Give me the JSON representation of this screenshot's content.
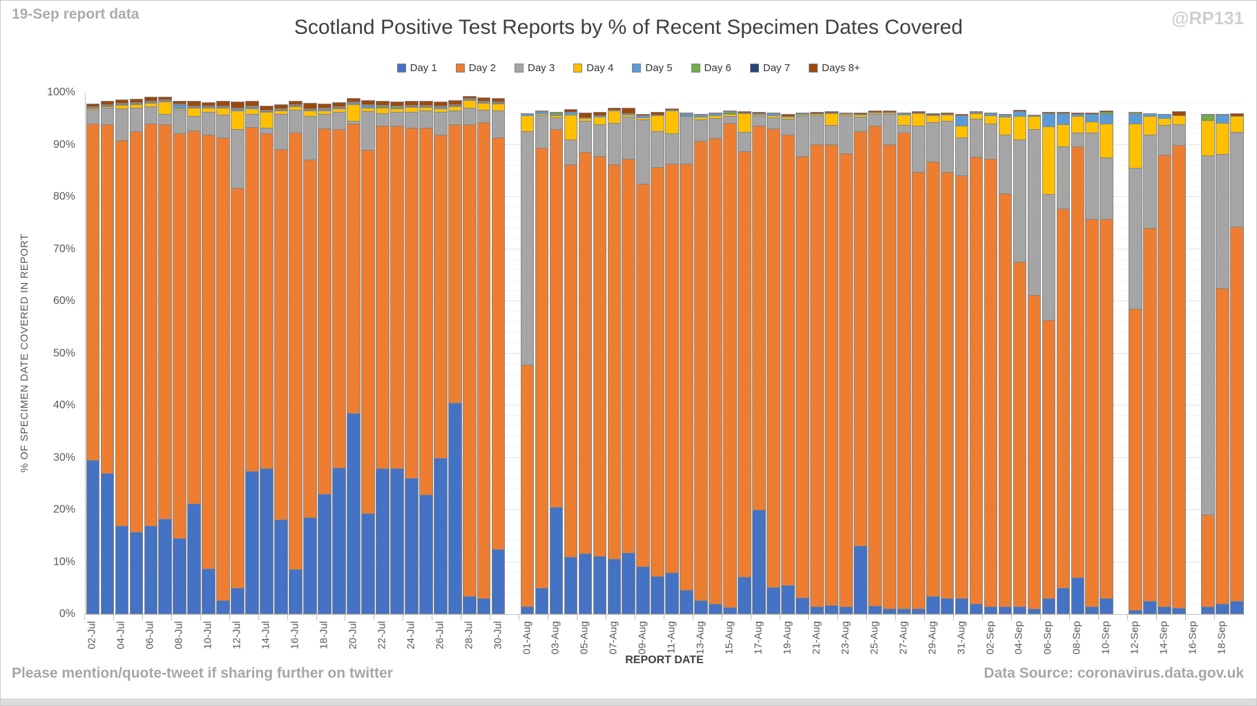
{
  "header": {
    "note_top_left": "19-Sep report data",
    "title": "Scotland Positive Test Reports by % of Recent Specimen Dates Covered",
    "watermark": "@RP131"
  },
  "footer": {
    "left": "Please mention/quote-tweet if sharing further on twitter",
    "right": "Data Source: coronavirus.data.gov.uk"
  },
  "chart_data": {
    "type": "bar",
    "subtype": "stacked-100-percent",
    "title": "Scotland Positive Test Reports by % of Recent Specimen Dates Covered",
    "xlabel": "REPORT DATE",
    "ylabel": "% OF SPECIMEN DATE COVERED IN REPORT",
    "ylim": [
      0,
      100
    ],
    "ytick_labels": [
      "0%",
      "10%",
      "20%",
      "30%",
      "40%",
      "50%",
      "60%",
      "70%",
      "80%",
      "90%",
      "100%"
    ],
    "grid": "horizontal-major-and-minor",
    "legend_position": "top",
    "series": [
      {
        "name": "Day 1",
        "color": "#4472C4"
      },
      {
        "name": "Day 2",
        "color": "#ED7D31"
      },
      {
        "name": "Day 3",
        "color": "#A5A5A5"
      },
      {
        "name": "Day 4",
        "color": "#FFC000"
      },
      {
        "name": "Day 5",
        "color": "#5B9BD5"
      },
      {
        "name": "Day 6",
        "color": "#70AD47"
      },
      {
        "name": "Day 7",
        "color": "#264478"
      },
      {
        "name": "Days 8+",
        "color": "#9E480E"
      }
    ],
    "missing_categories": [
      "31-Jul",
      "11-Sep",
      "16-Sep"
    ],
    "categories": [
      "02-Jul",
      "03-Jul",
      "04-Jul",
      "05-Jul",
      "06-Jul",
      "07-Jul",
      "08-Jul",
      "09-Jul",
      "10-Jul",
      "11-Jul",
      "12-Jul",
      "13-Jul",
      "14-Jul",
      "15-Jul",
      "16-Jul",
      "17-Jul",
      "18-Jul",
      "19-Jul",
      "20-Jul",
      "21-Jul",
      "22-Jul",
      "23-Jul",
      "24-Jul",
      "25-Jul",
      "26-Jul",
      "27-Jul",
      "28-Jul",
      "29-Jul",
      "30-Jul",
      "31-Jul",
      "01-Aug",
      "02-Aug",
      "03-Aug",
      "04-Aug",
      "05-Aug",
      "06-Aug",
      "07-Aug",
      "08-Aug",
      "09-Aug",
      "10-Aug",
      "11-Aug",
      "12-Aug",
      "13-Aug",
      "14-Aug",
      "15-Aug",
      "16-Aug",
      "17-Aug",
      "18-Aug",
      "19-Aug",
      "20-Aug",
      "21-Aug",
      "22-Aug",
      "23-Aug",
      "24-Aug",
      "25-Aug",
      "26-Aug",
      "27-Aug",
      "28-Aug",
      "29-Aug",
      "30-Aug",
      "31-Aug",
      "01-Sep",
      "02-Sep",
      "03-Sep",
      "04-Sep",
      "05-Sep",
      "06-Sep",
      "07-Sep",
      "08-Sep",
      "09-Sep",
      "10-Sep",
      "11-Sep",
      "12-Sep",
      "13-Sep",
      "14-Sep",
      "15-Sep",
      "16-Sep",
      "17-Sep",
      "18-Sep",
      "19-Sep"
    ],
    "values": {
      "02-Jul": [
        29.5,
        64.7,
        2.8,
        0.3,
        0.3,
        0.2,
        0.2,
        0.7
      ],
      "03-Jul": [
        27.0,
        67.0,
        3.3,
        0.4,
        0.2,
        0.2,
        0.2,
        0.8
      ],
      "04-Jul": [
        17.0,
        74.0,
        6.2,
        0.8,
        0.2,
        0.2,
        0.2,
        0.8
      ],
      "05-Jul": [
        15.7,
        77.0,
        4.7,
        0.7,
        0.2,
        0.2,
        0.2,
        0.9
      ],
      "06-Jul": [
        17.0,
        77.2,
        3.4,
        0.8,
        0.2,
        0.2,
        0.2,
        0.9
      ],
      "07-Jul": [
        18.3,
        75.7,
        2.2,
        2.5,
        0.2,
        0.2,
        0.1,
        0.6
      ],
      "08-Jul": [
        14.6,
        77.7,
        4.6,
        0.5,
        0.7,
        0.2,
        0.1,
        0.7
      ],
      "09-Jul": [
        21.2,
        71.6,
        2.9,
        1.8,
        0.3,
        0.2,
        0.2,
        1.0
      ],
      "10-Jul": [
        8.8,
        83.2,
        4.5,
        1.0,
        0.3,
        0.2,
        0.2,
        0.8
      ],
      "11-Jul": [
        2.6,
        88.9,
        4.5,
        1.5,
        0.3,
        0.2,
        0.2,
        1.0
      ],
      "12-Jul": [
        5.0,
        76.8,
        11.5,
        3.6,
        0.4,
        0.3,
        0.2,
        1.4
      ],
      "13-Jul": [
        27.4,
        66.1,
        2.6,
        1.2,
        0.5,
        0.2,
        0.2,
        1.0
      ],
      "14-Jul": [
        27.9,
        64.4,
        1.2,
        3.2,
        0.3,
        0.2,
        0.2,
        0.9
      ],
      "15-Jul": [
        18.1,
        71.2,
        6.8,
        0.8,
        0.3,
        0.2,
        0.2,
        1.0
      ],
      "16-Jul": [
        8.6,
        83.9,
        4.4,
        0.9,
        0.2,
        0.2,
        0.2,
        0.8
      ],
      "17-Jul": [
        18.5,
        68.8,
        8.4,
        1.2,
        0.3,
        0.2,
        0.2,
        1.2
      ],
      "18-Jul": [
        23.1,
        70.2,
        2.8,
        0.9,
        0.3,
        0.2,
        0.2,
        1.0
      ],
      "19-Jul": [
        28.1,
        65.0,
        3.4,
        0.8,
        0.3,
        0.2,
        0.2,
        0.9
      ],
      "20-Jul": [
        38.5,
        55.7,
        0.6,
        3.4,
        0.3,
        0.2,
        0.2,
        0.9
      ],
      "21-Jul": [
        19.4,
        69.7,
        7.6,
        0.8,
        0.5,
        0.2,
        0.2,
        0.9
      ],
      "22-Jul": [
        27.9,
        65.9,
        2.5,
        1.2,
        0.3,
        0.4,
        0.2,
        0.9
      ],
      "23-Jul": [
        27.9,
        65.9,
        2.7,
        0.8,
        0.3,
        0.4,
        0.2,
        0.9
      ],
      "24-Jul": [
        26.1,
        67.3,
        3.1,
        1.1,
        0.3,
        0.2,
        0.2,
        0.9
      ],
      "25-Jul": [
        22.9,
        70.5,
        3.4,
        0.8,
        0.3,
        0.2,
        0.2,
        0.9
      ],
      "26-Jul": [
        30.0,
        62.1,
        4.4,
        0.9,
        0.3,
        0.2,
        0.2,
        1.0
      ],
      "27-Jul": [
        40.5,
        53.5,
        2.8,
        0.9,
        0.3,
        0.2,
        0.2,
        0.9
      ],
      "28-Jul": [
        3.5,
        90.5,
        3.3,
        1.6,
        0.2,
        0.2,
        0.1,
        0.6
      ],
      "29-Jul": [
        3.0,
        91.4,
        2.6,
        1.4,
        0.3,
        0.2,
        0.2,
        0.8
      ],
      "30-Jul": [
        12.5,
        79.0,
        5.3,
        1.5,
        0.3,
        0.2,
        0.2,
        0.8
      ],
      "31-Jul": null,
      "01-Aug": [
        1.4,
        46.6,
        44.9,
        3.1,
        0.6,
        0,
        0,
        0
      ],
      "02-Aug": [
        5.0,
        84.6,
        6.4,
        0.4,
        0.5,
        0,
        0,
        0.3
      ],
      "03-Aug": [
        20.5,
        72.6,
        2.4,
        0.5,
        0.3,
        0.5,
        0,
        0.2
      ],
      "04-Aug": [
        11.0,
        75.4,
        4.8,
        4.9,
        0.7,
        0,
        0,
        0.7
      ],
      "05-Aug": [
        11.7,
        77.0,
        6.2,
        0.6,
        0.3,
        0,
        0,
        1.0
      ],
      "06-Aug": [
        11.1,
        76.8,
        6.3,
        1.6,
        0.3,
        0,
        0,
        0.8
      ],
      "07-Aug": [
        10.6,
        75.7,
        8.1,
        2.5,
        0.3,
        0,
        0,
        0.6
      ],
      "08-Aug": [
        11.8,
        75.6,
        8.3,
        0.5,
        0.4,
        0,
        0,
        1.1
      ],
      "09-Aug": [
        9.2,
        73.5,
        12.4,
        0.6,
        0.5,
        0,
        0,
        0.4
      ],
      "10-Aug": [
        7.3,
        78.5,
        7.1,
        3.1,
        0.3,
        0,
        0,
        0.6
      ],
      "11-Aug": [
        7.9,
        78.6,
        5.9,
        4.5,
        0.3,
        0,
        0,
        0.4
      ],
      "12-Aug": [
        4.6,
        81.9,
        9.2,
        0.3,
        0.5,
        0,
        0,
        0.3
      ],
      "13-Aug": [
        2.6,
        88.3,
        4.2,
        0.7,
        0.5,
        0,
        0,
        0.3
      ],
      "14-Aug": [
        2.0,
        89.4,
        4.0,
        0.6,
        0.5,
        0,
        0,
        0.3
      ],
      "15-Aug": [
        1.3,
        93.0,
        1.5,
        0.5,
        0.2,
        0.5,
        0,
        0.2
      ],
      "16-Aug": [
        7.1,
        81.8,
        3.8,
        3.7,
        0.2,
        0,
        0,
        0.4
      ],
      "17-Aug": [
        20.0,
        73.8,
        2.0,
        0.4,
        0.4,
        0,
        0,
        0.3
      ],
      "18-Aug": [
        5.2,
        88.1,
        2.2,
        0.5,
        0.5,
        0,
        0,
        0.3
      ],
      "19-Aug": [
        5.5,
        86.5,
        3.2,
        0.6,
        0.2,
        0,
        0,
        0.5
      ],
      "20-Aug": [
        3.2,
        84.8,
        7.7,
        0.4,
        0.4,
        0,
        0,
        0.3
      ],
      "21-Aug": [
        1.5,
        88.7,
        5.7,
        0.4,
        0.2,
        0,
        0,
        0.4
      ],
      "22-Aug": [
        1.7,
        88.5,
        3.8,
        2.4,
        0.2,
        0,
        0,
        0.4
      ],
      "23-Aug": [
        1.5,
        87.0,
        7.4,
        0.4,
        0.2,
        0,
        0,
        0.3
      ],
      "24-Aug": [
        13.1,
        79.6,
        3.0,
        0.4,
        0.2,
        0,
        0,
        0.4
      ],
      "25-Aug": [
        1.6,
        92.2,
        2.4,
        0.4,
        0.2,
        0,
        0,
        0.4
      ],
      "26-Aug": [
        1.0,
        89.2,
        6.0,
        0.4,
        0.2,
        0,
        0,
        0.4
      ],
      "27-Aug": [
        1.0,
        91.4,
        1.6,
        2.1,
        0.4,
        0,
        0,
        0.3
      ],
      "28-Aug": [
        1.0,
        83.9,
        9.0,
        2.5,
        0.2,
        0,
        0,
        0.4
      ],
      "29-Aug": [
        3.5,
        83.4,
        7.7,
        1.4,
        0.2,
        0,
        0,
        0.4
      ],
      "30-Aug": [
        3.0,
        81.9,
        10.0,
        1.2,
        0.2,
        0,
        0,
        0.4
      ],
      "31-Aug": [
        3.0,
        81.3,
        7.3,
        2.4,
        2.2,
        0,
        0,
        0.4
      ],
      "01-Sep": [
        2.0,
        85.8,
        7.5,
        1.1,
        0.3,
        0.2,
        0,
        0.3
      ],
      "02-Sep": [
        1.5,
        85.9,
        6.9,
        1.7,
        0.5,
        0,
        0,
        0.3
      ],
      "03-Sep": [
        1.5,
        79.3,
        11.4,
        3.6,
        0.5,
        0,
        0,
        0.3
      ],
      "04-Sep": [
        1.5,
        66.2,
        23.6,
        4.6,
        1.1,
        0,
        0,
        0.3
      ],
      "05-Sep": [
        1.0,
        60.3,
        31.9,
        2.7,
        0.2,
        0,
        0,
        0.3
      ],
      "06-Sep": [
        3.0,
        53.5,
        24.3,
        13.1,
        2.7,
        0,
        0,
        0.4
      ],
      "07-Sep": [
        5.0,
        72.9,
        12.1,
        4.3,
        2.3,
        0,
        0,
        0.4
      ],
      "08-Sep": [
        7.0,
        82.8,
        2.8,
        3.3,
        0.5,
        0,
        0,
        0.4
      ],
      "09-Sep": [
        1.5,
        74.4,
        16.7,
        2.2,
        1.6,
        0,
        0,
        0.4
      ],
      "10-Sep": [
        3.0,
        72.9,
        11.9,
        6.6,
        2.0,
        0.6,
        0,
        0.3
      ],
      "11-Sep": null,
      "12-Sep": [
        0.8,
        57.9,
        27.1,
        8.6,
        2.0,
        0.4,
        0,
        0.2
      ],
      "13-Sep": [
        2.5,
        71.7,
        18.0,
        3.7,
        0.6,
        0,
        0,
        0
      ],
      "14-Sep": [
        1.5,
        86.7,
        5.8,
        1.5,
        0.9,
        0,
        0,
        0
      ],
      "15-Sep": [
        1.2,
        88.9,
        4.1,
        1.8,
        0,
        0,
        0,
        0.9
      ],
      "16-Sep": null,
      "17-Sep": [
        1.5,
        17.7,
        69.0,
        6.9,
        0,
        1.2,
        0,
        0.3
      ],
      "18-Sep": [
        2.0,
        60.7,
        25.8,
        6.1,
        1.7,
        0,
        0,
        0.3
      ],
      "19-Sep": [
        2.5,
        72.0,
        18.2,
        3.2,
        0,
        0,
        0,
        0.6
      ]
    }
  }
}
